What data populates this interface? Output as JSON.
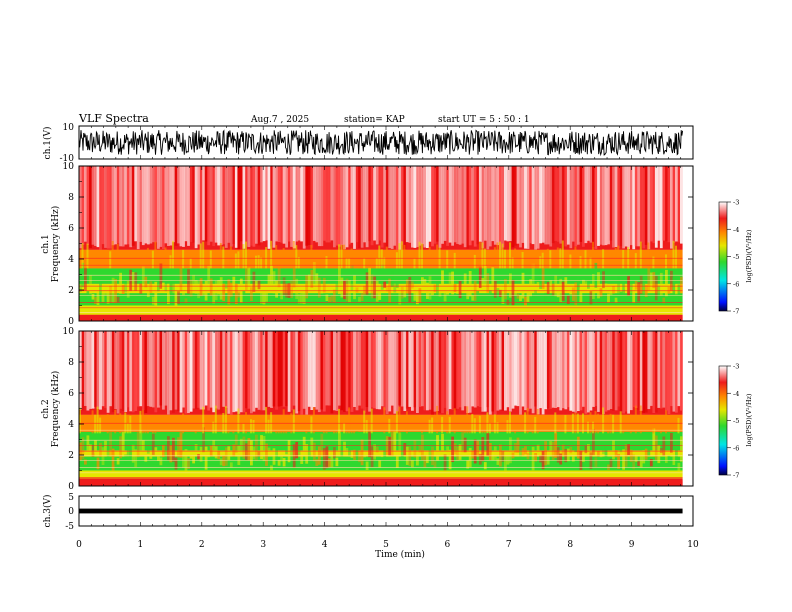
{
  "header": {
    "title": "VLF Spectra",
    "date": "Aug.7  , 2025",
    "station": "station= KAP",
    "start": "start  UT  =   5  : 50 : 1"
  },
  "colors": {
    "bg_hot": "#ff3c3c",
    "red": "#ee1c1c",
    "orange": "#ff8800",
    "yellow": "#e6e600",
    "green": "#2ed82e",
    "cyan": "#00e5e5",
    "blue": "#0010ff",
    "navy": "#000040"
  },
  "chart_data": [
    {
      "type": "line",
      "id": "ch1-waveform",
      "ylabel": "ch.1(V)",
      "ylim": [
        -10,
        10
      ],
      "yticks": [
        "10",
        "-10"
      ],
      "xlim": [
        0,
        10
      ],
      "description_values": "broadband noise roughly between -8 V and +8 V"
    },
    {
      "type": "heatmap",
      "id": "ch1-spectrogram",
      "ylabel_top": "ch.1",
      "ylabel": "Frequency  (kHz)",
      "ylim": [
        0,
        10
      ],
      "yticks": [
        "0",
        "2",
        "4",
        "6",
        "8",
        "10"
      ],
      "xlim": [
        0,
        10
      ],
      "bands": [
        {
          "from": 0.0,
          "to": 0.4,
          "level": "red"
        },
        {
          "from": 0.4,
          "to": 1.0,
          "level": "yellow"
        },
        {
          "from": 1.0,
          "to": 1.8,
          "level": "green"
        },
        {
          "from": 1.8,
          "to": 2.4,
          "level": "yellow"
        },
        {
          "from": 2.4,
          "to": 3.4,
          "level": "green"
        },
        {
          "from": 3.4,
          "to": 4.6,
          "level": "orange"
        },
        {
          "from": 4.6,
          "to": 10.0,
          "level": "red"
        }
      ],
      "colorbar": {
        "label": "log(PSD)(V²/Hz)",
        "ticks": [
          "-3",
          "-4",
          "-5",
          "-6",
          "-7"
        ],
        "range": [
          -7,
          -3
        ]
      }
    },
    {
      "type": "heatmap",
      "id": "ch2-spectrogram",
      "ylabel_top": "ch.2",
      "ylabel": "Frequency  (kHz)",
      "ylim": [
        0,
        10
      ],
      "yticks": [
        "0",
        "2",
        "4",
        "6",
        "8",
        "10"
      ],
      "xlim": [
        0,
        10
      ],
      "bands": [
        {
          "from": 0.0,
          "to": 0.5,
          "level": "red"
        },
        {
          "from": 0.5,
          "to": 1.0,
          "level": "yellow"
        },
        {
          "from": 1.0,
          "to": 1.9,
          "level": "green"
        },
        {
          "from": 1.9,
          "to": 2.3,
          "level": "yellow"
        },
        {
          "from": 2.3,
          "to": 3.5,
          "level": "green"
        },
        {
          "from": 3.5,
          "to": 4.6,
          "level": "orange"
        },
        {
          "from": 4.6,
          "to": 10.0,
          "level": "red"
        }
      ],
      "colorbar": {
        "label": "log(PSD)(V²/Hz)",
        "ticks": [
          "-3",
          "-4",
          "-5",
          "-6",
          "-7"
        ],
        "range": [
          -7,
          -3
        ]
      }
    },
    {
      "type": "line",
      "id": "ch3-waveform",
      "ylabel": "ch.3(V)",
      "ylim": [
        -5,
        5
      ],
      "yticks": [
        "5",
        "0",
        "-5"
      ],
      "xlim": [
        0,
        10
      ],
      "xlabel": "Time  (min)",
      "xticks": [
        "0",
        "1",
        "2",
        "3",
        "4",
        "5",
        "6",
        "7",
        "8",
        "9",
        "10"
      ],
      "description_values": "thin constant-amplitude band around 0 V"
    }
  ]
}
